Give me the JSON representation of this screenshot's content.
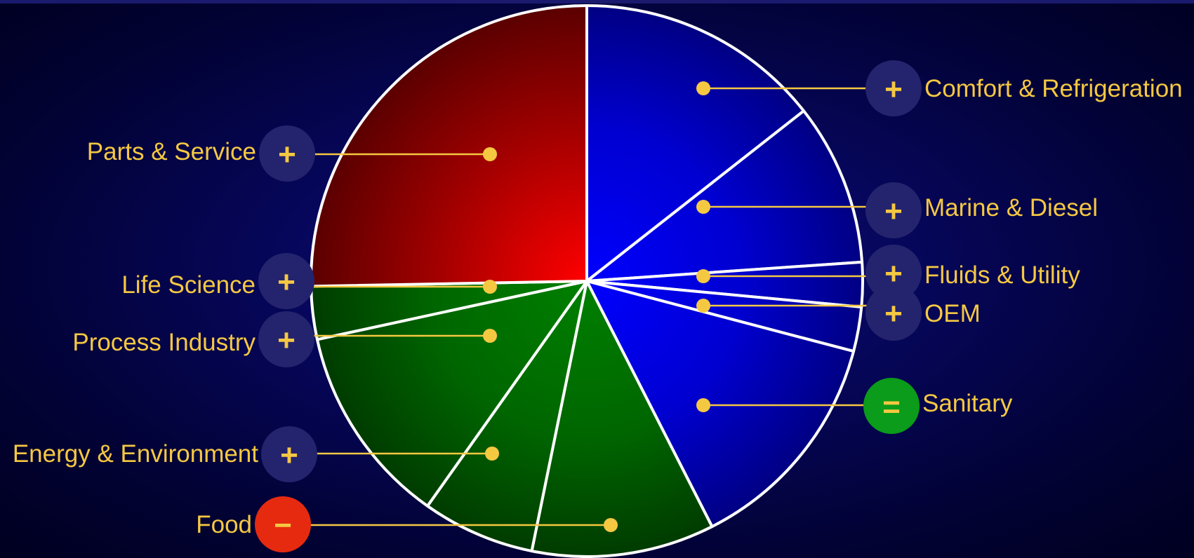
{
  "colors": {
    "growth": "#24246e",
    "decline": "#e52a10",
    "stable": "#0a9c1a",
    "label": "#f5c842",
    "red_segment": "#ff0000",
    "blue_segment": "#0000ff",
    "green_segment": "#008000"
  },
  "chart_data": {
    "type": "pie",
    "title": "",
    "start_angle_deg": 0,
    "direction": "clockwise",
    "slices": [
      {
        "label": "Comfort & Refrigeration",
        "value": 14.4,
        "group": "blue",
        "trend": "+"
      },
      {
        "label": "Marine & Diesel",
        "value": 9.5,
        "group": "blue",
        "trend": "+"
      },
      {
        "label": "Fluids & Utility",
        "value": 2.6,
        "group": "blue",
        "trend": "+"
      },
      {
        "label": "OEM",
        "value": 2.6,
        "group": "blue",
        "trend": "+"
      },
      {
        "label": "Sanitary",
        "value": 13.4,
        "group": "blue",
        "trend": "="
      },
      {
        "label": "Food",
        "value": 10.7,
        "group": "green",
        "trend": "−"
      },
      {
        "label": "Energy & Environment",
        "value": 6.6,
        "group": "green",
        "trend": "+"
      },
      {
        "label": "Process Industry",
        "value": 11.8,
        "group": "green",
        "trend": "+"
      },
      {
        "label": "Life Science",
        "value": 3.1,
        "group": "green",
        "trend": "+"
      },
      {
        "label": "Parts & Service",
        "value": 25.3,
        "group": "red",
        "trend": "+"
      }
    ]
  }
}
